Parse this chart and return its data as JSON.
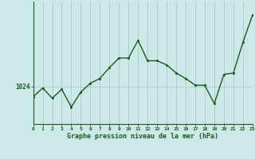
{
  "x": [
    0,
    1,
    2,
    3,
    4,
    5,
    6,
    7,
    8,
    9,
    10,
    11,
    12,
    13,
    14,
    15,
    16,
    17,
    18,
    19,
    20,
    21,
    22,
    23
  ],
  "y": [
    1022.5,
    1023.8,
    1022.3,
    1023.6,
    1021.0,
    1023.2,
    1024.5,
    1025.2,
    1026.8,
    1028.2,
    1028.2,
    1030.8,
    1027.8,
    1027.8,
    1027.2,
    1026.0,
    1025.2,
    1024.2,
    1024.2,
    1021.5,
    1025.8,
    1026.0,
    1030.5,
    1034.5
  ],
  "line_color": "#1a5c1a",
  "marker_color": "#1a5c1a",
  "background_color": "#cce8e8",
  "grid_color": "#aacaca",
  "xlabel": "Graphe pression niveau de la mer (hPa)",
  "ylabel_tick": "1024",
  "ylabel_value": 1024,
  "xlim": [
    0,
    23
  ],
  "ylim": [
    1018.5,
    1036.5
  ],
  "figwidth": 3.2,
  "figheight": 2.0,
  "dpi": 100
}
